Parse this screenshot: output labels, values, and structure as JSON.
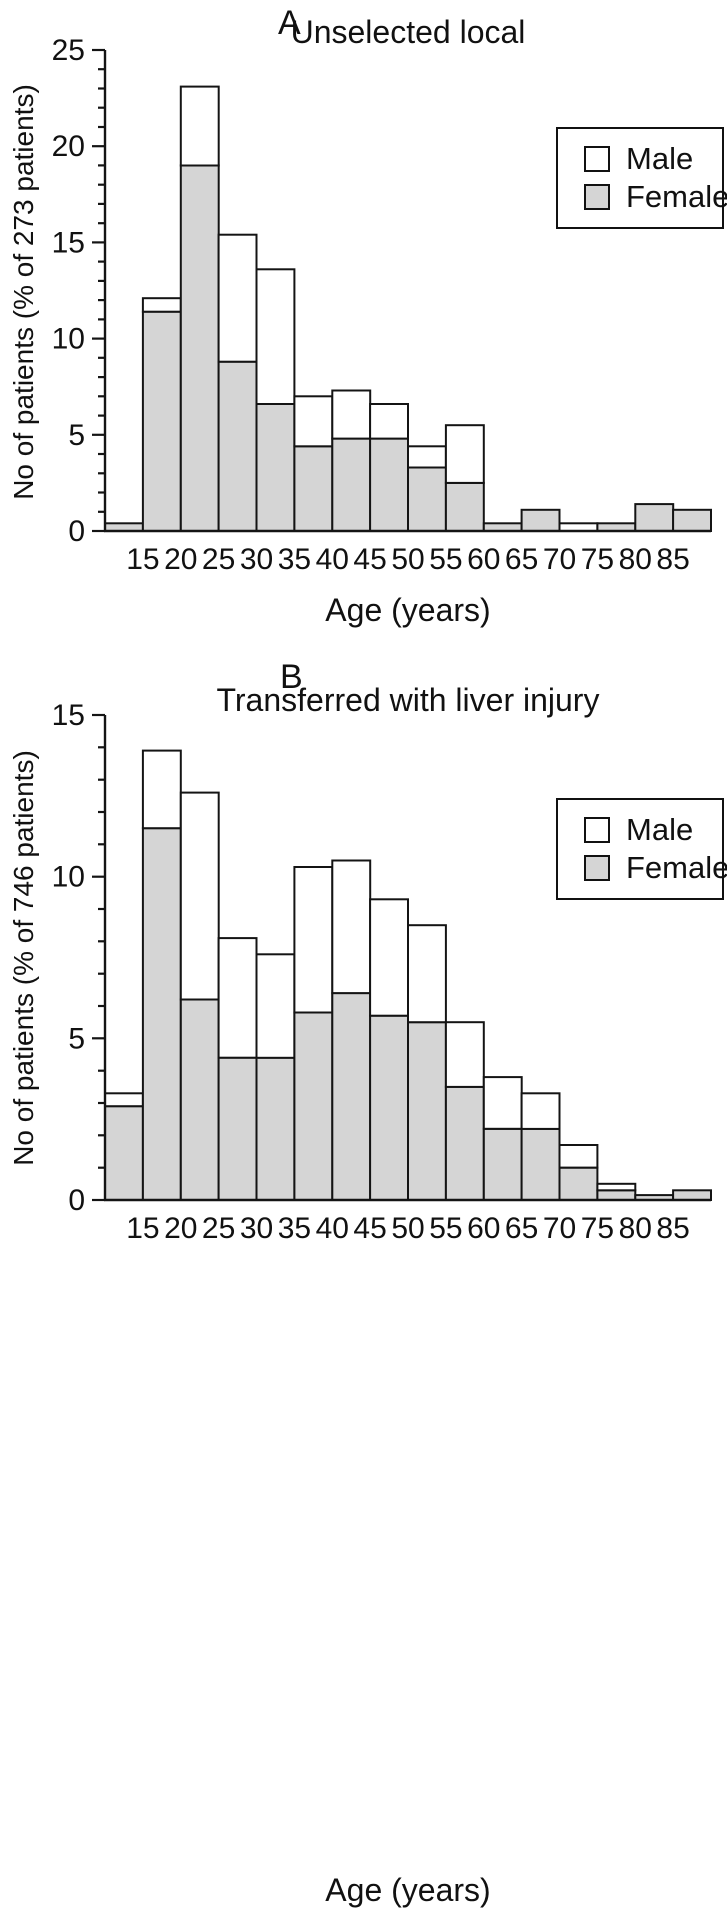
{
  "figure": {
    "background": "#ffffff",
    "axis_color": "#141414",
    "male_fill": "#ffffff",
    "female_fill": "#d5d5d5"
  },
  "chart_data": [
    {
      "type": "bar",
      "stacked": true,
      "panel_label": "A",
      "title": "Unselected local",
      "ylabel": "No of patients (% of 273 patients)",
      "xlabel": "Age (years)",
      "ylim": [
        0,
        25
      ],
      "ytick_major": 5,
      "ytick_minor": 1,
      "grid": false,
      "legend_position": "upper-right",
      "bin_start": 10,
      "bin_width": 5,
      "x_tick_labels": [
        15,
        20,
        25,
        30,
        35,
        40,
        45,
        50,
        55,
        60,
        65,
        70,
        75,
        80,
        85
      ],
      "legend": [
        {
          "label": "Male",
          "color": "#ffffff"
        },
        {
          "label": "Female",
          "color": "#d5d5d5"
        }
      ],
      "series": [
        {
          "name": "Male",
          "color": "#ffffff",
          "values": [
            0,
            0.7,
            4.1,
            6.6,
            7.0,
            2.6,
            2.5,
            1.8,
            1.1,
            3.0,
            0,
            0,
            0.4,
            0,
            0,
            0
          ]
        },
        {
          "name": "Female",
          "color": "#d5d5d5",
          "values": [
            0.4,
            11.4,
            19.0,
            8.8,
            6.6,
            4.4,
            4.8,
            4.8,
            3.3,
            2.5,
            0.4,
            1.1,
            0,
            0.4,
            1.4,
            1.1
          ]
        }
      ],
      "stroke_color": "#141414"
    },
    {
      "type": "bar",
      "stacked": true,
      "panel_label": "B",
      "title": "Transferred with liver injury",
      "ylabel": "No of patients (% of 746 patients)",
      "xlabel": "Age (years)",
      "ylim": [
        0,
        15
      ],
      "ytick_major": 5,
      "ytick_minor": 1,
      "grid": false,
      "legend_position": "upper-right",
      "bin_start": 10,
      "bin_width": 5,
      "x_tick_labels": [
        15,
        20,
        25,
        30,
        35,
        40,
        45,
        50,
        55,
        60,
        65,
        70,
        75,
        80,
        85
      ],
      "legend": [
        {
          "label": "Male",
          "color": "#ffffff"
        },
        {
          "label": "Female",
          "color": "#d5d5d5"
        }
      ],
      "series": [
        {
          "name": "Male",
          "color": "#ffffff",
          "values": [
            0.4,
            2.4,
            6.4,
            3.7,
            3.2,
            4.5,
            4.1,
            3.6,
            3.0,
            2.0,
            1.6,
            1.1,
            0.7,
            0.2,
            0,
            0
          ]
        },
        {
          "name": "Female",
          "color": "#d5d5d5",
          "values": [
            2.9,
            11.5,
            6.2,
            4.4,
            4.4,
            5.8,
            6.4,
            5.7,
            5.5,
            3.5,
            2.2,
            2.2,
            1.0,
            0.3,
            0.15,
            0.3
          ]
        }
      ],
      "stroke_color": "#141414"
    }
  ]
}
